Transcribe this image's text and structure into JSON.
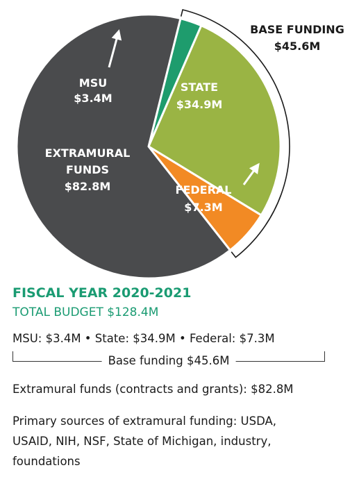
{
  "chart_data": {
    "type": "pie",
    "unit": "$M",
    "slices": [
      {
        "key": "msu",
        "label": "MSU",
        "value": 3.4,
        "display": "$3.4M",
        "color": "#1e9c6d"
      },
      {
        "key": "state",
        "label": "STATE",
        "value": 34.9,
        "display": "$34.9M",
        "color": "#9ab444"
      },
      {
        "key": "federal",
        "label": "FEDERAL",
        "value": 7.3,
        "display": "$7.3M",
        "color": "#f28a24"
      },
      {
        "key": "extramural",
        "label": "EXTRAMURAL FUNDS",
        "label_lines": [
          "EXTRAMURAL",
          "FUNDS"
        ],
        "value": 82.8,
        "display": "$82.8M",
        "color": "#4a4b4d"
      }
    ],
    "annotations": [
      {
        "key": "base",
        "label": "BASE FUNDING",
        "value": "$45.6M",
        "spans": [
          "msu",
          "state",
          "federal"
        ]
      }
    ]
  },
  "text": {
    "heading": "FISCAL YEAR 2020-2021",
    "subheading": "TOTAL BUDGET $128.4M",
    "breakdown": "MSU: $3.4M • State: $34.9M • Federal: $7.3M",
    "base_funding": "Base funding $45.6M",
    "extramural": "Extramural funds (contracts and grants): $82.8M",
    "sources": [
      "Primary sources of extramural funding: USDA,",
      "USAID, NIH, NSF, State of Michigan, industry,",
      "foundations"
    ]
  },
  "colors": {
    "accent": "#1a9b72",
    "text": "#1a1a1a"
  }
}
